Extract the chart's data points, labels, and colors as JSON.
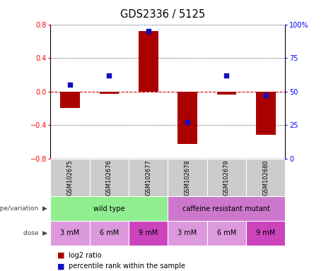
{
  "title": "GDS2336 / 5125",
  "samples": [
    "GSM102675",
    "GSM102676",
    "GSM102677",
    "GSM102678",
    "GSM102679",
    "GSM102680"
  ],
  "log2_ratio": [
    -0.2,
    -0.03,
    0.72,
    -0.63,
    -0.04,
    -0.52
  ],
  "percentile_rank": [
    55,
    62,
    95,
    27,
    62,
    47
  ],
  "ylim_left": [
    -0.8,
    0.8
  ],
  "ylim_right": [
    0,
    100
  ],
  "yticks_left": [
    -0.8,
    -0.4,
    0.0,
    0.4,
    0.8
  ],
  "yticks_right": [
    0,
    25,
    50,
    75,
    100
  ],
  "ytick_labels_right": [
    "0",
    "25",
    "50",
    "75",
    "100%"
  ],
  "bar_color": "#aa0000",
  "dot_color": "#1111bb",
  "hline_color": "#cc0000",
  "grid_color": "#111111",
  "genotype_groups": [
    {
      "label": "wild type",
      "start": 0,
      "end": 3,
      "color": "#90ee90"
    },
    {
      "label": "caffeine resistant mutant",
      "start": 3,
      "end": 6,
      "color": "#cc77cc"
    }
  ],
  "doses": [
    "3 mM",
    "6 mM",
    "9 mM",
    "3 mM",
    "6 mM",
    "9 mM"
  ],
  "dose_colors": [
    "#dd99dd",
    "#dd99dd",
    "#cc44bb",
    "#dd99dd",
    "#dd99dd",
    "#cc44bb"
  ],
  "legend_bar_label": "log2 ratio",
  "legend_dot_label": "percentile rank within the sample",
  "genotype_label": "genotype/variation",
  "dose_label": "dose",
  "sample_bg_color": "#cccccc",
  "bar_width": 0.5
}
